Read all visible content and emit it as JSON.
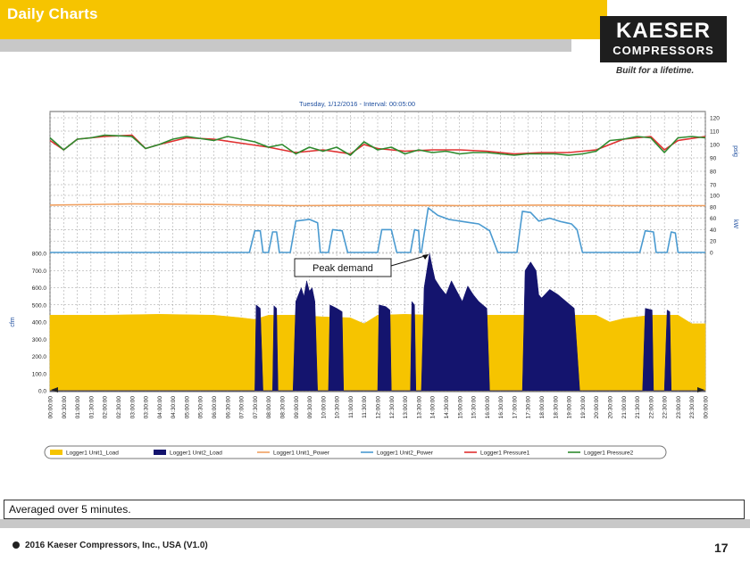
{
  "slide": {
    "title": "Daily Charts",
    "caption": "Averaged over 5 minutes.",
    "footer": "2016 Kaeser Compressors, Inc., USA (V1.0)",
    "page_number": "17"
  },
  "logo": {
    "line1": "KAESER",
    "line2": "COMPRESSORS",
    "tagline": "Built for a lifetime."
  },
  "colors": {
    "header_yellow": "#f6c400",
    "unit1_load": "#f6c400",
    "unit2_load": "#14146e",
    "unit1_power": "#f0a060",
    "unit2_power": "#4a9ad0",
    "pressure1": "#e03030",
    "pressure2": "#2e8a2e"
  },
  "chart_data": {
    "type": "area",
    "title": "Tuesday, 1/12/2016  -  Interval: 00:05:00",
    "x_labels": [
      "00:00:00",
      "00:30:00",
      "01:00:00",
      "01:30:00",
      "02:00:00",
      "02:30:00",
      "03:00:00",
      "03:30:00",
      "04:00:00",
      "04:30:00",
      "05:00:00",
      "05:30:00",
      "06:00:00",
      "06:30:00",
      "07:00:00",
      "07:30:00",
      "08:00:00",
      "08:30:00",
      "09:00:00",
      "09:30:00",
      "10:00:00",
      "10:30:00",
      "11:00:00",
      "11:30:00",
      "12:00:00",
      "12:30:00",
      "13:00:00",
      "13:30:00",
      "14:00:00",
      "14:30:00",
      "15:00:00",
      "15:30:00",
      "16:00:00",
      "16:30:00",
      "17:00:00",
      "17:30:00",
      "18:00:00",
      "18:30:00",
      "19:00:00",
      "19:30:00",
      "20:00:00",
      "20:30:00",
      "21:00:00",
      "21:30:00",
      "22:00:00",
      "22:30:00",
      "23:00:00",
      "23:30:00",
      "00:00:00"
    ],
    "x_range_hours": [
      0,
      24
    ],
    "panels": {
      "flow": {
        "ylabel": "cfm",
        "ylim": [
          0,
          800
        ],
        "ticks": [
          "0.0",
          "100.0",
          "200.0",
          "300.0",
          "400.0",
          "500.0",
          "600.0",
          "700.0",
          "800.0"
        ]
      },
      "power": {
        "ylabel": "kW",
        "ylim": [
          0,
          100
        ],
        "ticks": [
          "0",
          "20",
          "40",
          "60",
          "80",
          "100"
        ]
      },
      "pressure": {
        "ylabel": "psig",
        "ylim": [
          70,
          120
        ],
        "ticks": [
          "70",
          "80",
          "90",
          "100",
          "110",
          "120"
        ]
      }
    },
    "legend": [
      "Logger1 Unit1_Load",
      "Logger1 Unit2_Load",
      "Logger1 Unit1_Power",
      "Logger1 Unit2_Power",
      "Logger1 Pressure1",
      "Logger1 Pressure2"
    ],
    "annotation": {
      "text": "Peak demand",
      "at_hour": 13.9,
      "at_value": 800
    },
    "series": [
      {
        "name": "Logger1 Unit1_Load",
        "axis": "flow",
        "kind": "area",
        "points": [
          [
            0,
            440
          ],
          [
            2,
            440
          ],
          [
            4,
            445
          ],
          [
            6,
            440
          ],
          [
            7,
            425
          ],
          [
            7.5,
            415
          ],
          [
            8,
            440
          ],
          [
            9,
            440
          ],
          [
            10,
            430
          ],
          [
            11,
            425
          ],
          [
            11.5,
            390
          ],
          [
            12,
            440
          ],
          [
            13,
            445
          ],
          [
            14,
            440
          ],
          [
            16,
            440
          ],
          [
            17,
            440
          ],
          [
            18,
            440
          ],
          [
            20,
            440
          ],
          [
            20.5,
            400
          ],
          [
            21,
            420
          ],
          [
            22,
            440
          ],
          [
            23,
            440
          ],
          [
            23.5,
            390
          ],
          [
            24,
            390
          ]
        ]
      },
      {
        "name": "Logger1 Unit2_Load",
        "axis": "flow",
        "kind": "area",
        "points": [
          [
            0,
            0
          ],
          [
            7.5,
            0
          ],
          [
            7.55,
            500
          ],
          [
            7.7,
            480
          ],
          [
            7.8,
            0
          ],
          [
            8.15,
            0
          ],
          [
            8.2,
            495
          ],
          [
            8.3,
            480
          ],
          [
            8.35,
            0
          ],
          [
            8.9,
            0
          ],
          [
            9,
            520
          ],
          [
            9.2,
            600
          ],
          [
            9.3,
            550
          ],
          [
            9.4,
            640
          ],
          [
            9.5,
            580
          ],
          [
            9.6,
            600
          ],
          [
            9.7,
            520
          ],
          [
            9.8,
            0
          ],
          [
            10.2,
            0
          ],
          [
            10.25,
            500
          ],
          [
            10.5,
            480
          ],
          [
            10.7,
            460
          ],
          [
            10.75,
            0
          ],
          [
            12,
            0
          ],
          [
            12.05,
            500
          ],
          [
            12.3,
            490
          ],
          [
            12.45,
            470
          ],
          [
            12.5,
            0
          ],
          [
            13.2,
            0
          ],
          [
            13.25,
            520
          ],
          [
            13.35,
            500
          ],
          [
            13.4,
            0
          ],
          [
            13.6,
            0
          ],
          [
            13.7,
            600
          ],
          [
            13.9,
            800
          ],
          [
            14,
            720
          ],
          [
            14.1,
            650
          ],
          [
            14.3,
            600
          ],
          [
            14.5,
            560
          ],
          [
            14.7,
            640
          ],
          [
            14.9,
            580
          ],
          [
            15.1,
            520
          ],
          [
            15.3,
            610
          ],
          [
            15.5,
            560
          ],
          [
            15.7,
            520
          ],
          [
            16,
            480
          ],
          [
            16.1,
            0
          ],
          [
            17.3,
            0
          ],
          [
            17.4,
            700
          ],
          [
            17.6,
            750
          ],
          [
            17.8,
            700
          ],
          [
            17.9,
            560
          ],
          [
            18,
            540
          ],
          [
            18.3,
            590
          ],
          [
            18.6,
            560
          ],
          [
            18.9,
            520
          ],
          [
            19.2,
            480
          ],
          [
            19.4,
            0
          ],
          [
            21.7,
            0
          ],
          [
            21.8,
            480
          ],
          [
            22.05,
            470
          ],
          [
            22.1,
            0
          ],
          [
            22.5,
            0
          ],
          [
            22.6,
            470
          ],
          [
            22.7,
            460
          ],
          [
            22.75,
            0
          ],
          [
            24,
            0
          ]
        ]
      },
      {
        "name": "Logger1 Unit1_Power",
        "axis": "power",
        "kind": "line",
        "points": [
          [
            0,
            83
          ],
          [
            3,
            85
          ],
          [
            6,
            84
          ],
          [
            9,
            82
          ],
          [
            12,
            83
          ],
          [
            15,
            82
          ],
          [
            18,
            83
          ],
          [
            21,
            82
          ],
          [
            24,
            82
          ]
        ]
      },
      {
        "name": "Logger1 Unit2_Power",
        "axis": "power",
        "kind": "line",
        "points": [
          [
            0,
            0
          ],
          [
            7.3,
            0
          ],
          [
            7.5,
            38
          ],
          [
            7.7,
            38
          ],
          [
            7.8,
            0
          ],
          [
            8.0,
            0
          ],
          [
            8.15,
            36
          ],
          [
            8.3,
            36
          ],
          [
            8.4,
            0
          ],
          [
            8.8,
            0
          ],
          [
            9,
            55
          ],
          [
            9.5,
            58
          ],
          [
            9.8,
            52
          ],
          [
            9.9,
            0
          ],
          [
            10.2,
            0
          ],
          [
            10.35,
            40
          ],
          [
            10.7,
            38
          ],
          [
            10.9,
            0
          ],
          [
            12,
            0
          ],
          [
            12.15,
            40
          ],
          [
            12.5,
            40
          ],
          [
            12.7,
            0
          ],
          [
            13.2,
            0
          ],
          [
            13.35,
            40
          ],
          [
            13.5,
            38
          ],
          [
            13.55,
            0
          ],
          [
            13.6,
            0
          ],
          [
            13.85,
            78
          ],
          [
            14.2,
            65
          ],
          [
            14.6,
            58
          ],
          [
            15,
            55
          ],
          [
            15.4,
            52
          ],
          [
            15.7,
            50
          ],
          [
            16.1,
            38
          ],
          [
            16.4,
            0
          ],
          [
            17.1,
            0
          ],
          [
            17.3,
            72
          ],
          [
            17.6,
            70
          ],
          [
            17.9,
            55
          ],
          [
            18.3,
            60
          ],
          [
            18.7,
            54
          ],
          [
            19.1,
            50
          ],
          [
            19.3,
            40
          ],
          [
            19.5,
            0
          ],
          [
            21.6,
            0
          ],
          [
            21.8,
            38
          ],
          [
            22.1,
            36
          ],
          [
            22.2,
            0
          ],
          [
            22.6,
            0
          ],
          [
            22.75,
            36
          ],
          [
            22.9,
            34
          ],
          [
            23.0,
            0
          ],
          [
            24,
            0
          ]
        ]
      },
      {
        "name": "Logger1 Pressure1",
        "axis": "pressure",
        "kind": "line",
        "points": [
          [
            0,
            103
          ],
          [
            0.5,
            96
          ],
          [
            1,
            104
          ],
          [
            2,
            106
          ],
          [
            3,
            107
          ],
          [
            3.5,
            97
          ],
          [
            4,
            100
          ],
          [
            5,
            105
          ],
          [
            6,
            104
          ],
          [
            7,
            101
          ],
          [
            8,
            98
          ],
          [
            9,
            94
          ],
          [
            10,
            96
          ],
          [
            11,
            93
          ],
          [
            11.5,
            100
          ],
          [
            12,
            97
          ],
          [
            13,
            95
          ],
          [
            14,
            96
          ],
          [
            15,
            96
          ],
          [
            16,
            95
          ],
          [
            17,
            93
          ],
          [
            18,
            94
          ],
          [
            19,
            94
          ],
          [
            20,
            96
          ],
          [
            21,
            104
          ],
          [
            22,
            106
          ],
          [
            22.5,
            96
          ],
          [
            23,
            103
          ],
          [
            24,
            106
          ]
        ]
      },
      {
        "name": "Logger1 Pressure2",
        "axis": "pressure",
        "kind": "line",
        "points": [
          [
            0,
            105
          ],
          [
            0.5,
            96
          ],
          [
            1,
            104
          ],
          [
            1.5,
            105
          ],
          [
            2,
            107
          ],
          [
            3,
            106
          ],
          [
            3.5,
            97
          ],
          [
            4,
            100
          ],
          [
            4.5,
            104
          ],
          [
            5,
            106
          ],
          [
            6,
            103
          ],
          [
            6.5,
            106
          ],
          [
            7,
            104
          ],
          [
            7.5,
            102
          ],
          [
            8,
            98
          ],
          [
            8.5,
            100
          ],
          [
            9,
            93
          ],
          [
            9.5,
            98
          ],
          [
            10,
            95
          ],
          [
            10.5,
            98
          ],
          [
            11,
            92
          ],
          [
            11.5,
            102
          ],
          [
            12,
            96
          ],
          [
            12.5,
            98
          ],
          [
            13,
            93
          ],
          [
            13.5,
            96
          ],
          [
            14,
            94
          ],
          [
            14.5,
            95
          ],
          [
            15,
            93
          ],
          [
            15.5,
            94
          ],
          [
            16,
            94
          ],
          [
            16.5,
            93
          ],
          [
            17,
            92
          ],
          [
            17.5,
            93
          ],
          [
            18,
            93
          ],
          [
            18.5,
            93
          ],
          [
            19,
            92
          ],
          [
            19.5,
            93
          ],
          [
            20,
            95
          ],
          [
            20.5,
            103
          ],
          [
            21,
            104
          ],
          [
            21.5,
            106
          ],
          [
            22,
            105
          ],
          [
            22.5,
            94
          ],
          [
            23,
            105
          ],
          [
            23.5,
            106
          ],
          [
            24,
            105
          ]
        ]
      }
    ]
  }
}
